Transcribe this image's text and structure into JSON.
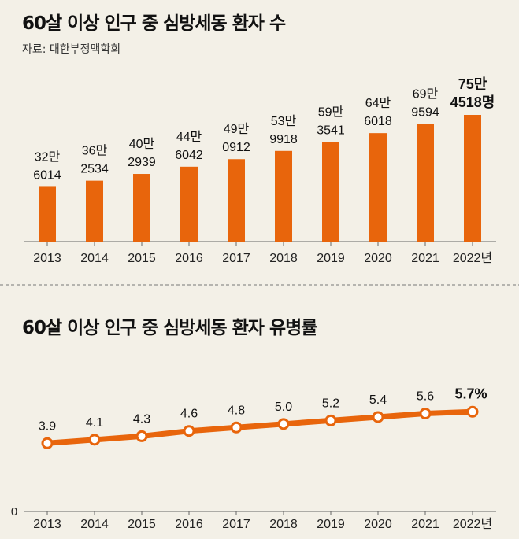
{
  "chart_data": [
    {
      "type": "bar",
      "title": "60살 이상 인구 중 심방세동 환자 수",
      "source": "자료: 대한부정맥학회",
      "categories": [
        "2013",
        "2014",
        "2015",
        "2016",
        "2017",
        "2018",
        "2019",
        "2020",
        "2021",
        "2022년"
      ],
      "values": [
        326014,
        362534,
        402939,
        446042,
        490912,
        539918,
        593541,
        646018,
        699594,
        754518
      ],
      "data_labels": [
        [
          "32만",
          "6014"
        ],
        [
          "36만",
          "2534"
        ],
        [
          "40만",
          "2939"
        ],
        [
          "44만",
          "6042"
        ],
        [
          "49만",
          "0912"
        ],
        [
          "53만",
          "9918"
        ],
        [
          "59만",
          "3541"
        ],
        [
          "64만",
          "6018"
        ],
        [
          "69만",
          "9594"
        ],
        [
          "75만",
          "4518명"
        ]
      ],
      "ylim": [
        0,
        800000
      ],
      "color": "#e8650c",
      "grid": false
    },
    {
      "type": "line",
      "title": "60살 이상 인구 중 심방세동 환자 유병률",
      "categories": [
        "2013",
        "2014",
        "2015",
        "2016",
        "2017",
        "2018",
        "2019",
        "2020",
        "2021",
        "2022년"
      ],
      "values": [
        3.9,
        4.1,
        4.3,
        4.6,
        4.8,
        5.0,
        5.2,
        5.4,
        5.6,
        5.7
      ],
      "data_labels": [
        "3.9",
        "4.1",
        "4.3",
        "4.6",
        "4.8",
        "5.0",
        "5.2",
        "5.4",
        "5.6",
        "5.7%"
      ],
      "yticks": [
        "0"
      ],
      "ylim": [
        0,
        6
      ],
      "color": "#e8650c",
      "grid": false
    }
  ]
}
